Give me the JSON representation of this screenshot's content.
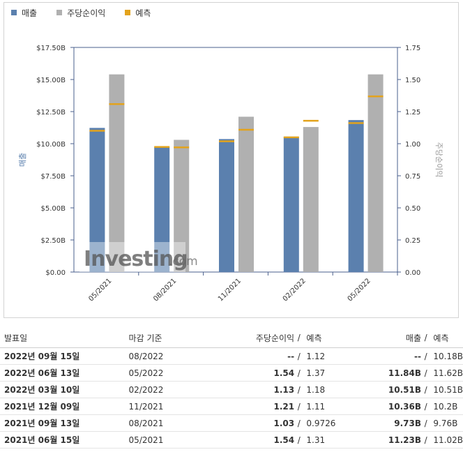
{
  "legend": [
    {
      "label": "매출",
      "color": "#5b80ae"
    },
    {
      "label": "주당순이익",
      "color": "#b0b0b0"
    },
    {
      "label": "예측",
      "color": "#e3a31c"
    }
  ],
  "watermark": {
    "brand": "Investing",
    "suffix": ".com"
  },
  "chart_data": {
    "type": "bar",
    "categories": [
      "05/2021",
      "08/2021",
      "11/2021",
      "02/2022",
      "05/2022"
    ],
    "left_axis": {
      "label": "매출",
      "ylim": [
        0,
        17.5
      ],
      "ticks": [
        "$0.00",
        "$2.50B",
        "$5.00B",
        "$7.50B",
        "$10.00B",
        "$12.50B",
        "$15.00B",
        "$17.50B"
      ]
    },
    "right_axis": {
      "label": "주당순이익",
      "ylim": [
        0,
        1.75
      ],
      "ticks": [
        "0.00",
        "0.25",
        "0.50",
        "0.75",
        "1.00",
        "1.25",
        "1.50",
        "1.75"
      ]
    },
    "series": [
      {
        "name": "매출",
        "axis": "left",
        "color": "#5b80ae",
        "values": [
          11.23,
          9.73,
          10.36,
          10.51,
          11.84
        ]
      },
      {
        "name": "주당순이익",
        "axis": "right",
        "color": "#b0b0b0",
        "values": [
          1.54,
          1.03,
          1.21,
          1.13,
          1.54
        ]
      },
      {
        "name": "매출 예측",
        "axis": "left",
        "color": "#e3a31c",
        "values": [
          11.02,
          9.76,
          10.2,
          10.51,
          11.62
        ]
      },
      {
        "name": "주당순이익 예측",
        "axis": "right",
        "color": "#e3a31c",
        "values": [
          1.31,
          0.9726,
          1.11,
          1.18,
          1.37
        ]
      }
    ],
    "grid": false
  },
  "table": {
    "headers": {
      "date": "발표일",
      "period": "마감 기준",
      "eps": "주당순이익",
      "fc1": "예측",
      "rev": "매출",
      "fc2": "예측",
      "slash": "/"
    },
    "rows": [
      {
        "date": "2022년 09월 15일",
        "period": "08/2022",
        "eps": "--",
        "eps_class": "plain",
        "eps_fc": "1.12",
        "rev": "--",
        "rev_class": "plain",
        "rev_fc": "10.18B"
      },
      {
        "date": "2022년 06월 13일",
        "period": "05/2022",
        "eps": "1.54",
        "eps_class": "red",
        "eps_fc": "1.37",
        "rev": "11.84B",
        "rev_class": "red",
        "rev_fc": "11.62B"
      },
      {
        "date": "2022년 03월 10일",
        "period": "02/2022",
        "eps": "1.13",
        "eps_class": "blue",
        "eps_fc": "1.18",
        "rev": "10.51B",
        "rev_class": "plain",
        "rev_fc": "10.51B"
      },
      {
        "date": "2021년 12월 09일",
        "period": "11/2021",
        "eps": "1.21",
        "eps_class": "red",
        "eps_fc": "1.11",
        "rev": "10.36B",
        "rev_class": "red",
        "rev_fc": "10.2B"
      },
      {
        "date": "2021년 09월 13일",
        "period": "08/2021",
        "eps": "1.03",
        "eps_class": "red",
        "eps_fc": "0.9726",
        "rev": "9.73B",
        "rev_class": "blue",
        "rev_fc": "9.76B"
      },
      {
        "date": "2021년 06월 15일",
        "period": "05/2021",
        "eps": "1.54",
        "eps_class": "red",
        "eps_fc": "1.31",
        "rev": "11.23B",
        "rev_class": "red",
        "rev_fc": "11.02B"
      }
    ]
  }
}
